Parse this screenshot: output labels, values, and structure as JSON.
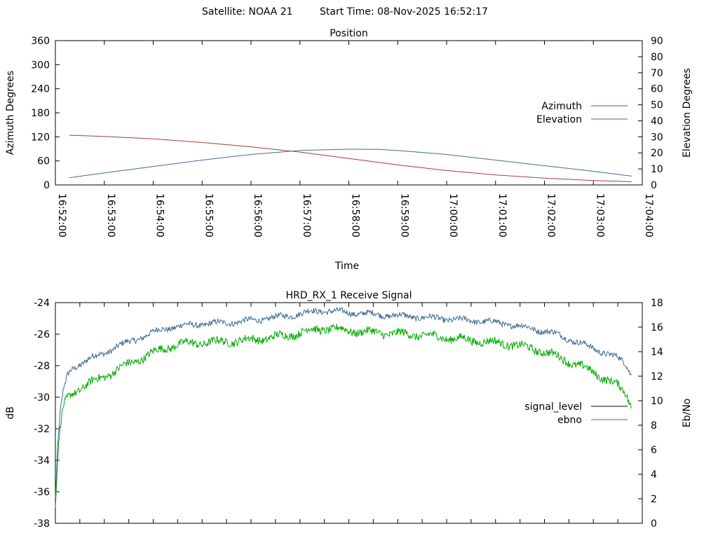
{
  "header": {
    "satellite_label": "Satellite: NOAA 21",
    "start_time_label": "Start Time: 08-Nov-2025 16:52:17"
  },
  "colors": {
    "azimuth": "#a83a3a",
    "elevation": "#3d6d96",
    "signal_level": "#3d6d96",
    "ebno": "#00aa00",
    "legend_signal_level": "#000000",
    "legend_ebno": "#3d6d96"
  },
  "chart_data": [
    {
      "type": "line",
      "title": "Position",
      "xlabel": "Time",
      "ylabel": "Azimuth Degrees",
      "y2label": "Elevation Degrees",
      "ylim": [
        0,
        360
      ],
      "y2lim": [
        0,
        90
      ],
      "yticks": [
        "0",
        "60",
        "120",
        "180",
        "240",
        "300",
        "360"
      ],
      "y2ticks": [
        "0",
        "10",
        "20",
        "30",
        "40",
        "50",
        "60",
        "70",
        "80",
        "90"
      ],
      "xlim_seconds": [
        0,
        720
      ],
      "xticks": [
        "16:52:00",
        "16:53:00",
        "16:54:00",
        "16:55:00",
        "16:56:00",
        "16:57:00",
        "16:58:00",
        "16:59:00",
        "17:00:00",
        "17:01:00",
        "17:02:00",
        "17:03:00",
        "17:04:00"
      ],
      "legend_position": "right",
      "series": [
        {
          "name": "Azimuth",
          "axis": "y",
          "x_seconds": [
            17,
            60,
            120,
            180,
            240,
            300,
            360,
            420,
            480,
            540,
            600,
            660,
            707
          ],
          "values": [
            124,
            121,
            115,
            106,
            95,
            82,
            66,
            50,
            36,
            25,
            17,
            11,
            8
          ]
        },
        {
          "name": "Elevation",
          "axis": "y2",
          "x_seconds": [
            17,
            60,
            120,
            180,
            240,
            300,
            360,
            395,
            420,
            480,
            540,
            600,
            660,
            707
          ],
          "values": [
            4.5,
            7.5,
            11.5,
            15.5,
            19.0,
            21.5,
            22.3,
            22.2,
            21.5,
            19.0,
            15.5,
            12.0,
            8.5,
            5.5
          ]
        }
      ]
    },
    {
      "type": "line",
      "title": "HRD_RX_1 Receive Signal",
      "ylabel": "dB",
      "y2label": "Eb/No",
      "ylim": [
        -38,
        -24
      ],
      "y2lim": [
        0,
        18
      ],
      "yticks": [
        "-38",
        "-36",
        "-34",
        "-32",
        "-30",
        "-28",
        "-26",
        "-24"
      ],
      "y2ticks": [
        "0",
        "2",
        "4",
        "6",
        "8",
        "10",
        "12",
        "14",
        "16",
        "18"
      ],
      "xlim_seconds": [
        0,
        720
      ],
      "x_tick_count": 25,
      "legend_position": "right",
      "series": [
        {
          "name": "signal_level",
          "axis": "y",
          "x_seconds": [
            0,
            3,
            6,
            10,
            15,
            20,
            30,
            45,
            60,
            75,
            90,
            110,
            130,
            150,
            170,
            200,
            230,
            260,
            290,
            310,
            330,
            350,
            380,
            410,
            440,
            470,
            500,
            530,
            560,
            580,
            600,
            615,
            630,
            645,
            660,
            675,
            690,
            700,
            707
          ],
          "values": [
            -36.5,
            -33.0,
            -31.0,
            -29.5,
            -28.6,
            -28.2,
            -27.9,
            -27.5,
            -27.2,
            -26.8,
            -26.5,
            -26.1,
            -25.7,
            -25.5,
            -25.4,
            -25.3,
            -25.2,
            -25.0,
            -24.8,
            -24.6,
            -24.5,
            -24.6,
            -24.7,
            -24.8,
            -24.9,
            -25.0,
            -25.1,
            -25.2,
            -25.4,
            -25.6,
            -25.8,
            -26.0,
            -26.3,
            -26.6,
            -26.9,
            -27.2,
            -27.5,
            -27.9,
            -28.6
          ]
        },
        {
          "name": "ebno",
          "axis": "y2",
          "x_seconds": [
            0,
            3,
            6,
            10,
            15,
            20,
            30,
            45,
            60,
            75,
            90,
            110,
            130,
            150,
            170,
            200,
            230,
            260,
            290,
            310,
            330,
            350,
            380,
            410,
            440,
            470,
            500,
            530,
            560,
            580,
            600,
            615,
            630,
            645,
            660,
            675,
            690,
            700,
            707
          ],
          "values": [
            1.5,
            5.5,
            7.8,
            9.5,
            10.2,
            10.6,
            11.0,
            11.5,
            12.0,
            12.5,
            13.0,
            13.6,
            14.2,
            14.6,
            14.7,
            14.8,
            14.9,
            15.1,
            15.4,
            15.7,
            15.9,
            15.8,
            15.6,
            15.5,
            15.4,
            15.2,
            15.0,
            14.8,
            14.6,
            14.3,
            14.0,
            13.6,
            13.2,
            12.8,
            12.3,
            11.8,
            11.2,
            10.6,
            9.5
          ]
        }
      ]
    }
  ]
}
